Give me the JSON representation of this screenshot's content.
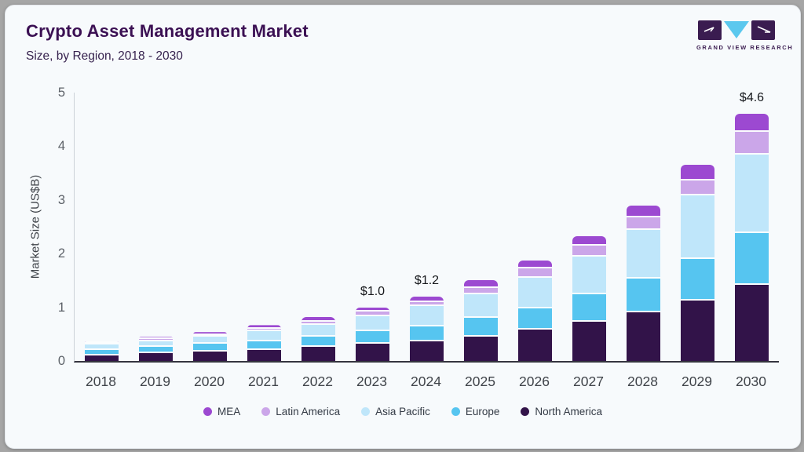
{
  "header": {
    "title": "Crypto Asset Management Market",
    "subtitle": "Size, by Region, 2018 - 2030",
    "logo_text": "GRAND VIEW RESEARCH"
  },
  "theme": {
    "card_bg": "#f7fafc",
    "title_color": "#3b1053",
    "logo_dark": "#3a1c50",
    "logo_cyan": "#5bc8ee",
    "axis_line": "#35353f"
  },
  "chart_data": {
    "type": "bar",
    "stacked": true,
    "title": "Crypto Asset Management Market",
    "subtitle": "Size, by Region, 2018 - 2030",
    "xlabel": "",
    "ylabel": "Market Size (US$B)",
    "ylim": [
      0,
      5
    ],
    "yticks": [
      0,
      1,
      2,
      3,
      4,
      5
    ],
    "grid": false,
    "legend_position": "bottom",
    "legend_order": [
      "MEA",
      "Latin America",
      "Asia Pacific",
      "Europe",
      "North America"
    ],
    "categories": [
      "2018",
      "2019",
      "2020",
      "2021",
      "2022",
      "2023",
      "2024",
      "2025",
      "2026",
      "2027",
      "2028",
      "2029",
      "2030"
    ],
    "series": [
      {
        "name": "North America",
        "color": "#321349",
        "values": [
          0.1,
          0.14,
          0.18,
          0.21,
          0.27,
          0.32,
          0.37,
          0.45,
          0.58,
          0.73,
          0.9,
          1.13,
          1.42
        ]
      },
      {
        "name": "Europe",
        "color": "#56c5f0",
        "values": [
          0.11,
          0.12,
          0.14,
          0.16,
          0.18,
          0.23,
          0.28,
          0.35,
          0.4,
          0.52,
          0.64,
          0.77,
          0.97
        ]
      },
      {
        "name": "Asia Pacific",
        "color": "#bfe6fa",
        "values": [
          0.1,
          0.11,
          0.13,
          0.19,
          0.23,
          0.28,
          0.38,
          0.44,
          0.57,
          0.7,
          0.9,
          1.18,
          1.46
        ]
      },
      {
        "name": "Latin America",
        "color": "#cba6e9",
        "values": [
          0.03,
          0.04,
          0.04,
          0.04,
          0.05,
          0.09,
          0.07,
          0.12,
          0.18,
          0.2,
          0.24,
          0.29,
          0.42
        ]
      },
      {
        "name": "MEA",
        "color": "#9c49d1",
        "values": [
          0.03,
          0.04,
          0.05,
          0.07,
          0.09,
          0.08,
          0.1,
          0.14,
          0.14,
          0.17,
          0.22,
          0.28,
          0.33
        ]
      }
    ],
    "totals": [
      0.37,
      0.45,
      0.54,
      0.67,
      0.82,
      1.0,
      1.2,
      1.5,
      1.87,
      2.32,
      2.9,
      3.65,
      4.6
    ],
    "bar_labels": {
      "2023": "$1.0",
      "2024": "$1.2",
      "2030": "$4.6"
    }
  }
}
